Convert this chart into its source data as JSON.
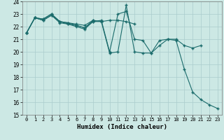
{
  "xlabel": "Humidex (Indice chaleur)",
  "bg_color": "#cce8e4",
  "grid_color": "#aacccc",
  "line_color": "#1a6b6b",
  "xlim": [
    -0.5,
    23.5
  ],
  "ylim": [
    15,
    24
  ],
  "xticks": [
    0,
    1,
    2,
    3,
    4,
    5,
    6,
    7,
    8,
    9,
    10,
    11,
    12,
    13,
    14,
    15,
    16,
    17,
    18,
    19,
    20,
    21,
    22,
    23
  ],
  "yticks": [
    15,
    16,
    17,
    18,
    19,
    20,
    21,
    22,
    23,
    24
  ],
  "lines": [
    {
      "x": [
        0,
        1,
        2,
        3,
        4,
        5,
        6,
        7,
        8,
        9,
        10,
        11,
        12,
        13,
        14,
        15,
        16,
        17,
        18,
        19,
        20,
        21,
        22,
        23
      ],
      "y": [
        21.5,
        22.7,
        22.6,
        23.0,
        22.4,
        22.3,
        22.1,
        21.9,
        22.5,
        22.4,
        19.9,
        20.0,
        23.7,
        20.0,
        19.9,
        19.9,
        20.5,
        21.0,
        20.9,
        18.6,
        16.8,
        16.2,
        15.8,
        15.5
      ]
    },
    {
      "x": [
        0,
        1,
        2,
        3,
        4,
        5,
        6,
        7,
        8,
        9,
        10,
        11,
        12,
        13,
        14,
        15,
        16,
        17,
        18,
        19,
        20,
        21
      ],
      "y": [
        21.5,
        22.7,
        22.5,
        22.9,
        22.4,
        22.2,
        22.0,
        21.8,
        22.4,
        22.5,
        20.0,
        23.0,
        23.2,
        21.0,
        20.9,
        19.9,
        20.9,
        21.0,
        21.0,
        20.5,
        20.3,
        20.5
      ]
    },
    {
      "x": [
        0,
        1,
        2,
        3,
        4,
        5,
        6,
        7,
        8
      ],
      "y": [
        21.5,
        22.7,
        22.6,
        23.0,
        22.4,
        22.3,
        22.2,
        22.1,
        22.5
      ]
    },
    {
      "x": [
        0,
        1,
        2,
        3,
        4,
        5,
        6,
        7,
        8,
        9,
        10,
        11,
        12,
        13
      ],
      "y": [
        21.5,
        22.7,
        22.5,
        22.9,
        22.3,
        22.2,
        22.1,
        21.9,
        22.4,
        22.4,
        22.5,
        22.5,
        22.4,
        22.2
      ]
    }
  ]
}
